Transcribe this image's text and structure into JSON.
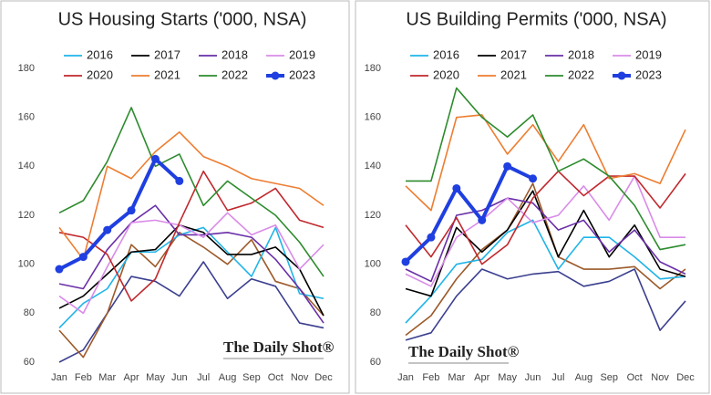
{
  "chart_data": [
    {
      "type": "line",
      "title": "US Housing Starts ('000, NSA)",
      "watermark": "The Daily Shot®",
      "categories": [
        "Jan",
        "Feb",
        "Mar",
        "Apr",
        "May",
        "Jun",
        "Jul",
        "Aug",
        "Sep",
        "Oct",
        "Nov",
        "Dec"
      ],
      "ylim": [
        60,
        180
      ],
      "yticks": [
        60,
        80,
        100,
        120,
        140,
        160,
        180
      ],
      "grid": false,
      "legend": "top",
      "series": [
        {
          "color": "#3b3f8f",
          "values": [
            60,
            65,
            80,
            95,
            93,
            87,
            101,
            86,
            94,
            91,
            76,
            74
          ]
        },
        {
          "color": "#9c5a2a",
          "values": [
            73,
            62,
            80,
            108,
            99,
            113,
            107,
            100,
            110,
            93,
            90,
            79
          ]
        },
        {
          "name": "2016",
          "color": "#1fb4e8",
          "values": [
            74,
            84,
            90,
            105,
            105,
            112,
            115,
            105,
            95,
            115,
            88,
            86
          ]
        },
        {
          "name": "2017",
          "color": "#000000",
          "values": [
            82,
            87,
            96,
            105,
            106,
            116,
            113,
            104,
            104,
            107,
            98,
            79
          ]
        },
        {
          "name": "2018",
          "color": "#6a2fa8",
          "values": [
            92,
            90,
            106,
            117,
            124,
            112,
            112,
            113,
            111,
            102,
            90,
            76
          ]
        },
        {
          "name": "2019",
          "color": "#d98be8",
          "values": [
            87,
            80,
            99,
            117,
            118,
            116,
            111,
            121,
            112,
            116,
            98,
            108
          ]
        },
        {
          "name": "2020",
          "color": "#c0282d",
          "values": [
            113,
            111,
            104,
            85,
            94,
            117,
            138,
            122,
            125,
            131,
            118,
            115
          ]
        },
        {
          "name": "2021",
          "color": "#ed7d31",
          "values": [
            115,
            102,
            140,
            135,
            146,
            154,
            144,
            140,
            135,
            133,
            131,
            124
          ]
        },
        {
          "name": "2022",
          "color": "#2e8b2e",
          "values": [
            121,
            126,
            142,
            164,
            140,
            145,
            124,
            134,
            127,
            120,
            109,
            95
          ]
        },
        {
          "name": "2023",
          "color": "#1f3fe0",
          "values": [
            98,
            103,
            114,
            122,
            143,
            134,
            null,
            null,
            null,
            null,
            null,
            null
          ]
        }
      ]
    },
    {
      "type": "line",
      "title": "US Building Permits ('000, NSA)",
      "watermark": "The Daily Shot®",
      "categories": [
        "Jan",
        "Feb",
        "Mar",
        "Apr",
        "May",
        "Jun",
        "Jul",
        "Aug",
        "Sep",
        "Oct",
        "Nov",
        "Dec"
      ],
      "ylim": [
        60,
        180
      ],
      "yticks": [
        60,
        80,
        100,
        120,
        140,
        160,
        180
      ],
      "grid": false,
      "legend": "top",
      "series": [
        {
          "color": "#3b3f8f",
          "values": [
            69,
            72,
            87,
            98,
            94,
            96,
            97,
            91,
            93,
            98,
            73,
            85
          ]
        },
        {
          "color": "#9c5a2a",
          "values": [
            71,
            79,
            94,
            106,
            114,
            133,
            103,
            98,
            98,
            99,
            90,
            98
          ]
        },
        {
          "name": "2016",
          "color": "#1fb4e8",
          "values": [
            76,
            87,
            100,
            102,
            113,
            118,
            98,
            111,
            111,
            103,
            94,
            95
          ]
        },
        {
          "name": "2017",
          "color": "#000000",
          "values": [
            90,
            87,
            115,
            105,
            114,
            130,
            103,
            122,
            103,
            116,
            98,
            95
          ]
        },
        {
          "name": "2018",
          "color": "#6a2fa8",
          "values": [
            98,
            93,
            120,
            122,
            127,
            125,
            114,
            118,
            105,
            114,
            101,
            96
          ]
        },
        {
          "name": "2019",
          "color": "#d98be8",
          "values": [
            96,
            91,
            111,
            118,
            127,
            117,
            120,
            132,
            118,
            136,
            111,
            111
          ]
        },
        {
          "name": "2020",
          "color": "#c0282d",
          "values": [
            116,
            103,
            119,
            100,
            108,
            127,
            138,
            128,
            136,
            136,
            123,
            137
          ]
        },
        {
          "name": "2021",
          "color": "#ed7d31",
          "values": [
            132,
            122,
            160,
            161,
            145,
            157,
            142,
            157,
            135,
            137,
            133,
            155
          ]
        },
        {
          "name": "2022",
          "color": "#2e8b2e",
          "values": [
            134,
            134,
            172,
            160,
            152,
            161,
            138,
            143,
            136,
            124,
            106,
            108
          ]
        },
        {
          "name": "2023",
          "color": "#1f3fe0",
          "values": [
            101,
            111,
            131,
            118,
            140,
            135,
            null,
            null,
            null,
            null,
            null,
            null
          ]
        }
      ]
    }
  ]
}
